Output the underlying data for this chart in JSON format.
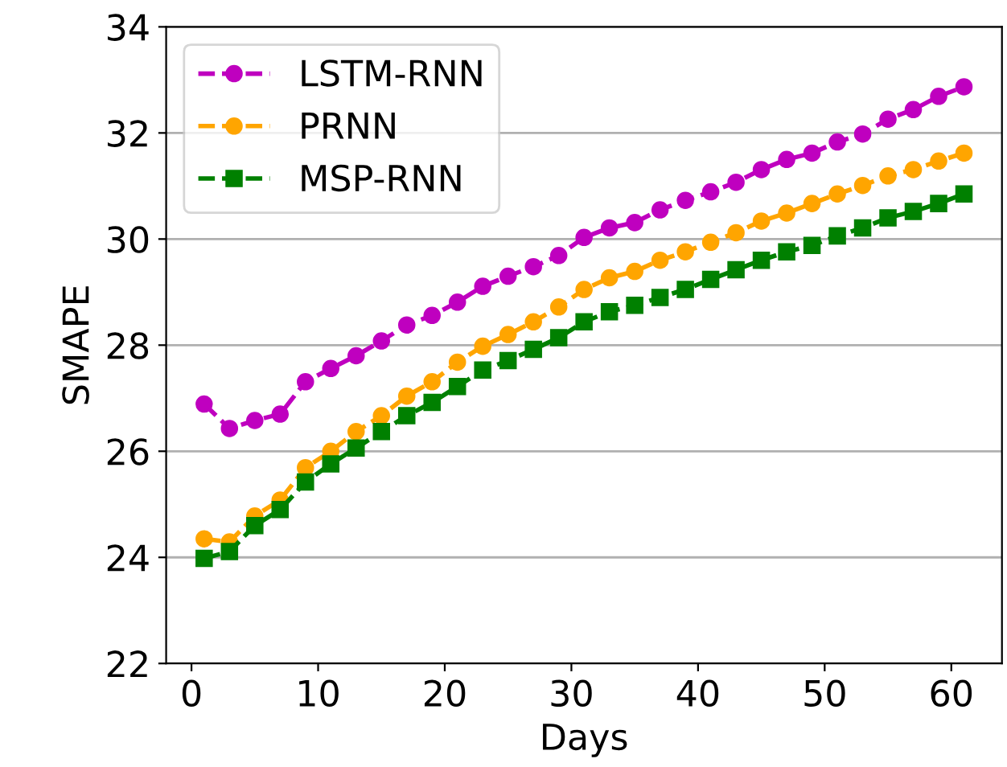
{
  "chart_data": {
    "type": "line",
    "xlabel": "Days",
    "ylabel": "SMAPE",
    "x": [
      1,
      3,
      5,
      7,
      9,
      11,
      13,
      15,
      17,
      19,
      21,
      23,
      25,
      27,
      29,
      31,
      33,
      35,
      37,
      39,
      41,
      43,
      45,
      47,
      49,
      51,
      53,
      55,
      57,
      59,
      61
    ],
    "series": [
      {
        "name": "LSTM-RNN",
        "color": "#bf00bf",
        "marker": "circle",
        "values": [
          26.89,
          26.43,
          26.58,
          26.7,
          27.31,
          27.56,
          27.8,
          28.08,
          28.38,
          28.56,
          28.81,
          29.11,
          29.3,
          29.48,
          29.69,
          30.03,
          30.21,
          30.31,
          30.55,
          30.73,
          30.89,
          31.07,
          31.31,
          31.5,
          31.62,
          31.83,
          31.98,
          32.26,
          32.44,
          32.69,
          32.87
        ]
      },
      {
        "name": "PRNN",
        "color": "#ffa500",
        "marker": "circle",
        "values": [
          24.35,
          24.29,
          24.78,
          25.08,
          25.69,
          26.0,
          26.37,
          26.67,
          27.04,
          27.31,
          27.68,
          27.98,
          28.2,
          28.44,
          28.72,
          29.05,
          29.27,
          29.39,
          29.6,
          29.76,
          29.94,
          30.12,
          30.34,
          30.49,
          30.67,
          30.85,
          31.01,
          31.19,
          31.31,
          31.47,
          31.62
        ]
      },
      {
        "name": "MSP-RNN",
        "color": "#008000",
        "marker": "square",
        "values": [
          23.98,
          24.11,
          24.6,
          24.9,
          25.42,
          25.76,
          26.06,
          26.37,
          26.67,
          26.92,
          27.22,
          27.53,
          27.71,
          27.92,
          28.14,
          28.44,
          28.63,
          28.75,
          28.9,
          29.05,
          29.24,
          29.42,
          29.6,
          29.76,
          29.88,
          30.06,
          30.21,
          30.4,
          30.52,
          30.67,
          30.85
        ]
      }
    ],
    "xlim": [
      -2,
      64
    ],
    "ylim": [
      22,
      34
    ],
    "xticks": [
      0,
      10,
      20,
      30,
      40,
      50,
      60
    ],
    "yticks": [
      22,
      24,
      26,
      28,
      30,
      32,
      34
    ],
    "grid": "y",
    "legend": "top left",
    "line_style": "dashed"
  }
}
